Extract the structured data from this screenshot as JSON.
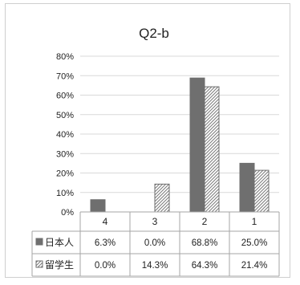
{
  "chart_data": {
    "type": "bar",
    "title": "Q2-b",
    "categories": [
      "4",
      "3",
      "2",
      "1"
    ],
    "ylim": [
      0,
      80
    ],
    "yticks": [
      0,
      10,
      20,
      30,
      40,
      50,
      60,
      70,
      80
    ],
    "ytick_suffix": "%",
    "grid": true,
    "legend_placement": "table-bottom",
    "series": [
      {
        "name": "日本人",
        "values": [
          6.3,
          0.0,
          68.8,
          25.0
        ],
        "labels": [
          "6.3%",
          "0.0%",
          "68.8%",
          "25.0%"
        ],
        "color": "#6f6f6f",
        "pattern": "solid"
      },
      {
        "name": "留学生",
        "values": [
          0.0,
          14.3,
          64.3,
          21.4
        ],
        "labels": [
          "0.0%",
          "14.3%",
          "64.3%",
          "21.4%"
        ],
        "color": "#9a9a9a",
        "pattern": "diagonal-hatch"
      }
    ]
  }
}
